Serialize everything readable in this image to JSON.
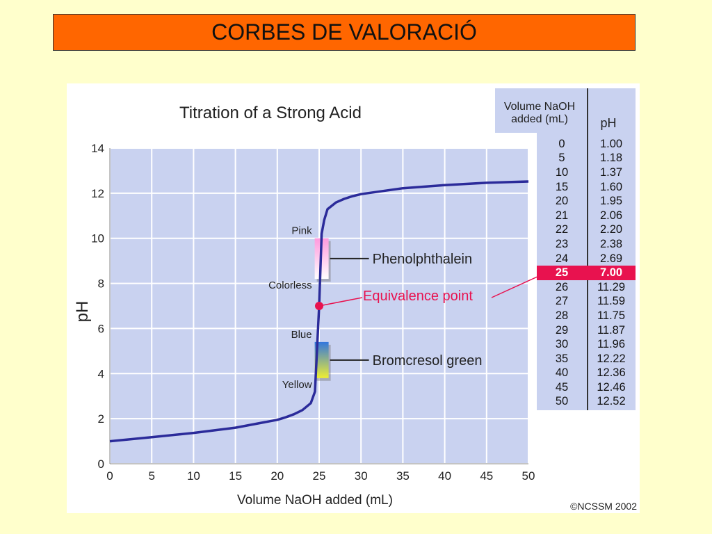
{
  "slide": {
    "title": "CORBES DE VALORACIÓ"
  },
  "chart_data": {
    "type": "line",
    "title": "Titration of a Strong Acid",
    "xlabel": "Volume NaOH added (mL)",
    "ylabel": "pH",
    "xlim": [
      0,
      50
    ],
    "ylim": [
      0,
      14
    ],
    "xticks": [
      0,
      5,
      10,
      15,
      20,
      25,
      30,
      35,
      40,
      45,
      50
    ],
    "yticks": [
      0,
      2,
      4,
      6,
      8,
      10,
      12,
      14
    ],
    "grid": true,
    "series": [
      {
        "x": [
          0,
          5,
          10,
          15,
          20,
          21,
          22,
          23,
          24,
          24.5,
          25,
          25.3,
          25.6,
          26,
          27,
          28,
          29,
          30,
          35,
          40,
          45,
          50
        ],
        "values": [
          1.0,
          1.18,
          1.37,
          1.6,
          1.95,
          2.06,
          2.2,
          2.38,
          2.69,
          3.2,
          7.0,
          10.2,
          10.8,
          11.29,
          11.59,
          11.75,
          11.87,
          11.96,
          12.22,
          12.36,
          12.46,
          12.52
        ]
      }
    ],
    "equivalence_point": {
      "x": 25,
      "y": 7.0,
      "label": "Equivalence point"
    },
    "indicators": [
      {
        "name": "Phenolphthalein",
        "upper_label": "Pink",
        "lower_label": "Colorless",
        "ph_range": [
          8.2,
          10
        ],
        "colors": [
          "#ff99dd",
          "#ffffff"
        ]
      },
      {
        "name": "Bromcresol green",
        "upper_label": "Blue",
        "lower_label": "Yellow",
        "ph_range": [
          3.8,
          5.4
        ],
        "colors": [
          "#3377dd",
          "#eeee33"
        ]
      }
    ],
    "credit": "©NCSSM 2002"
  },
  "table": {
    "header_volume": "Volume NaOH added (mL)",
    "header_ph": "pH",
    "rows": [
      [
        "0",
        "1.00"
      ],
      [
        "5",
        "1.18"
      ],
      [
        "10",
        "1.37"
      ],
      [
        "15",
        "1.60"
      ],
      [
        "20",
        "1.95"
      ],
      [
        "21",
        "2.06"
      ],
      [
        "22",
        "2.20"
      ],
      [
        "23",
        "2.38"
      ],
      [
        "24",
        "2.69"
      ],
      [
        "25",
        "7.00"
      ],
      [
        "26",
        "11.29"
      ],
      [
        "27",
        "11.59"
      ],
      [
        "28",
        "11.75"
      ],
      [
        "29",
        "11.87"
      ],
      [
        "30",
        "11.96"
      ],
      [
        "35",
        "12.22"
      ],
      [
        "40",
        "12.36"
      ],
      [
        "45",
        "12.46"
      ],
      [
        "50",
        "12.52"
      ]
    ],
    "highlight_row": 9
  },
  "colors": {
    "title_bar": "#ff6600",
    "slide_bg": "#ffffcc",
    "plot_bg": "#c9d2f0",
    "curve": "#2b2b9a",
    "highlight": "#e8124f"
  }
}
